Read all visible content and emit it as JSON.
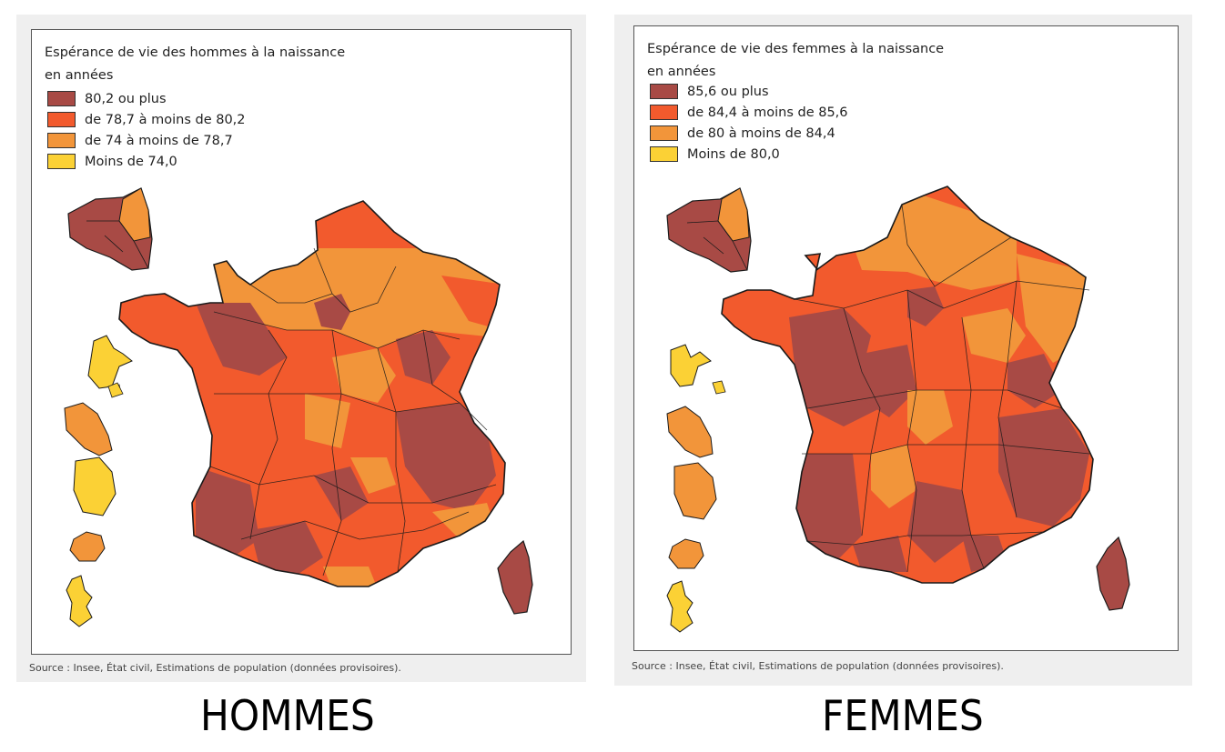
{
  "colors": {
    "class1": "#a84a45",
    "class2": "#f25a2d",
    "class3": "#f2953a",
    "class4": "#fbd135",
    "border": "#1a1a1a"
  },
  "hommes": {
    "title_line1": "Espérance de vie des hommes à la naissance",
    "title_line2": "en années",
    "legend": [
      {
        "label": "80,2 ou plus",
        "color": "#a84a45"
      },
      {
        "label": "de 78,7 à moins de 80,2",
        "color": "#f25a2d"
      },
      {
        "label": "de 74 à moins de 78,7",
        "color": "#f2953a"
      },
      {
        "label": "Moins de 74,0",
        "color": "#fbd135"
      }
    ],
    "source": "Source : Insee, État civil, Estimations de population (données provisoires).",
    "caption": "HOMMES"
  },
  "femmes": {
    "title_line1": "Espérance de vie des femmes à la naissance",
    "title_line2": "en années",
    "legend": [
      {
        "label": "85,6 ou plus",
        "color": "#a84a45"
      },
      {
        "label": "de 84,4 à moins de 85,6",
        "color": "#f25a2d"
      },
      {
        "label": "de 80 à moins de 84,4",
        "color": "#f2953a"
      },
      {
        "label": "Moins de 80,0",
        "color": "#fbd135"
      }
    ],
    "source": "Source : Insee, État civil, Estimations de population (données provisoires).",
    "caption": "FEMMES"
  }
}
